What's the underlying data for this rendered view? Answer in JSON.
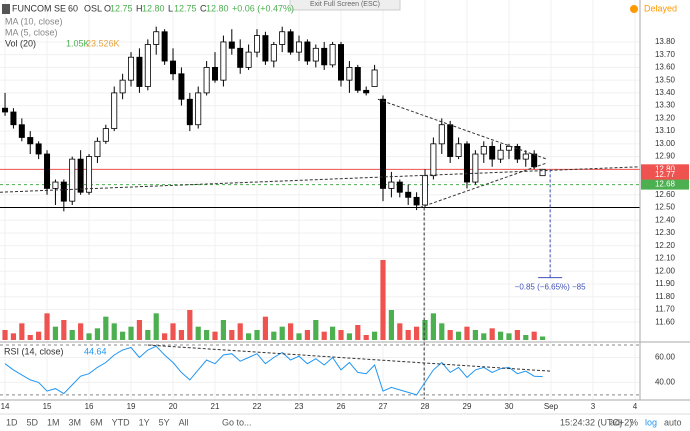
{
  "header": {
    "tooltip": "Exit Full Screen (ESC)",
    "status": "Delayed"
  },
  "legend": {
    "symbol": "FUNCOM SE",
    "interval": "60",
    "exchange": "OSL",
    "ohlc_labels": [
      "O",
      "H",
      "L",
      "C"
    ],
    "ohlc_values": [
      "12.75",
      "12.80",
      "12.75",
      "12.80"
    ],
    "change": "+0.06 (+0.47%)",
    "ma10": "MA (10, close)",
    "ma5": "MA (5, close)",
    "volume": "Vol (20)",
    "volume_value": "1.05K",
    "volume_ma": "23.526K"
  },
  "toolbar": {
    "periods": [
      "1D",
      "5D",
      "1M",
      "3M",
      "6M",
      "YTD",
      "1Y",
      "5Y",
      "All"
    ],
    "goto": "Go to...",
    "time": "15:24:32 (UTC+2)",
    "options": [
      "%",
      "log",
      "auto"
    ],
    "adj": "adj"
  },
  "chart_data": {
    "type": "candlestick",
    "x": [
      0,
      1,
      2,
      3,
      4,
      5,
      6,
      7,
      8,
      9,
      10,
      11,
      12,
      13,
      14,
      15,
      16,
      17,
      18,
      19,
      20,
      21,
      22,
      23,
      24,
      25,
      26,
      27,
      28,
      29,
      30,
      31,
      32,
      33,
      34,
      35,
      36,
      37,
      38,
      39,
      40,
      41,
      42,
      43,
      44,
      45,
      46,
      47,
      48,
      49,
      50,
      51,
      52,
      53,
      54,
      55,
      56,
      57,
      58,
      59,
      60,
      61,
      62,
      63,
      64
    ],
    "open": [
      13.28,
      13.25,
      13.15,
      13.05,
      13.0,
      12.92,
      12.65,
      12.7,
      12.55,
      12.88,
      12.62,
      12.9,
      13.02,
      13.12,
      13.4,
      13.5,
      13.68,
      13.45,
      13.78,
      13.88,
      13.65,
      13.55,
      13.35,
      13.15,
      13.4,
      13.6,
      13.5,
      13.8,
      13.75,
      13.6,
      13.72,
      13.85,
      13.65,
      13.78,
      13.88,
      13.72,
      13.8,
      13.65,
      13.75,
      13.62,
      13.78,
      13.5,
      13.6,
      13.42,
      13.45,
      13.35,
      12.65,
      12.7,
      12.62,
      12.58,
      12.52,
      12.75,
      13.0,
      13.15,
      12.9,
      13.0,
      12.7,
      12.92,
      12.98,
      12.88,
      12.95,
      12.98,
      12.88,
      12.92,
      12.75
    ],
    "high": [
      13.4,
      13.28,
      13.2,
      13.1,
      13.02,
      12.95,
      12.72,
      12.72,
      12.9,
      12.95,
      12.92,
      13.05,
      13.15,
      13.45,
      13.55,
      13.72,
      13.75,
      13.82,
      13.92,
      13.9,
      13.75,
      13.6,
      13.4,
      13.45,
      13.65,
      13.72,
      13.85,
      13.9,
      13.82,
      13.78,
      13.9,
      13.88,
      13.8,
      13.92,
      13.9,
      13.85,
      13.82,
      13.78,
      13.8,
      13.8,
      13.8,
      13.65,
      13.62,
      13.45,
      13.62,
      13.38,
      12.78,
      12.72,
      12.68,
      12.62,
      12.8,
      13.05,
      13.2,
      13.18,
      13.05,
      13.02,
      12.95,
      13.02,
      13.02,
      13.0,
      13.0,
      13.0,
      12.95,
      12.95,
      12.8
    ],
    "low": [
      13.22,
      13.12,
      13.02,
      12.92,
      12.88,
      12.6,
      12.52,
      12.47,
      12.52,
      12.6,
      12.6,
      12.85,
      13.0,
      13.1,
      13.35,
      13.45,
      13.4,
      13.42,
      13.7,
      13.62,
      13.5,
      13.3,
      13.1,
      13.12,
      13.38,
      13.48,
      13.45,
      13.7,
      13.55,
      13.58,
      13.68,
      13.62,
      13.6,
      13.72,
      13.7,
      13.65,
      13.62,
      13.6,
      13.58,
      13.6,
      13.45,
      13.4,
      13.4,
      13.38,
      13.45,
      12.55,
      12.58,
      12.58,
      12.52,
      12.48,
      12.5,
      12.72,
      12.92,
      12.85,
      12.88,
      12.65,
      12.68,
      12.85,
      12.82,
      12.85,
      12.88,
      12.85,
      12.82,
      12.8,
      12.75
    ],
    "close": [
      13.25,
      13.15,
      13.05,
      13.0,
      12.92,
      12.65,
      12.7,
      12.55,
      12.88,
      12.62,
      12.9,
      13.02,
      13.12,
      13.4,
      13.5,
      13.68,
      13.45,
      13.78,
      13.88,
      13.65,
      13.55,
      13.35,
      13.15,
      13.4,
      13.6,
      13.5,
      13.8,
      13.75,
      13.6,
      13.72,
      13.85,
      13.65,
      13.78,
      13.88,
      13.72,
      13.8,
      13.65,
      13.75,
      13.62,
      13.78,
      13.5,
      13.6,
      13.42,
      13.4,
      13.58,
      12.65,
      12.7,
      12.62,
      12.58,
      12.52,
      12.75,
      13.0,
      13.15,
      12.9,
      13.0,
      12.7,
      12.92,
      12.98,
      12.88,
      12.95,
      12.98,
      12.88,
      12.92,
      12.82,
      12.8
    ],
    "volume": [
      3000,
      2000,
      5000,
      1500,
      2500,
      8000,
      4000,
      6000,
      3000,
      5000,
      2000,
      3500,
      7000,
      5000,
      2500,
      4000,
      6000,
      3000,
      8000,
      2000,
      5000,
      3000,
      9000,
      4000,
      3000,
      2500,
      6000,
      3000,
      5000,
      2000,
      3000,
      7000,
      2500,
      4000,
      5000,
      2000,
      3000,
      6000,
      2500,
      4000,
      3000,
      2000,
      4500,
      1500,
      2500,
      24000,
      9000,
      5000,
      3000,
      4000,
      6000,
      8000,
      5000,
      3000,
      2500,
      4000,
      3000,
      2000,
      3500,
      2500,
      2000,
      3000,
      1500,
      2500,
      1050
    ],
    "xlim": [
      -0.6,
      75.6
    ],
    "xticks": [
      {
        "value": 0,
        "label": "14"
      },
      {
        "value": 5,
        "label": "15"
      },
      {
        "value": 10,
        "label": "16"
      },
      {
        "value": 15,
        "label": "19"
      },
      {
        "value": 20,
        "label": "20"
      },
      {
        "value": 25,
        "label": "21"
      },
      {
        "value": 30,
        "label": "22"
      },
      {
        "value": 35,
        "label": "23"
      },
      {
        "value": 40,
        "label": "26"
      },
      {
        "value": 45,
        "label": "27"
      },
      {
        "value": 50,
        "label": "28"
      },
      {
        "value": 55,
        "label": "29"
      },
      {
        "value": 60,
        "label": "30"
      },
      {
        "value": 65,
        "label": "Sep"
      },
      {
        "value": 70,
        "label": "3"
      },
      {
        "value": 75,
        "label": "4"
      }
    ],
    "ylim": [
      11.46,
      14.09
    ],
    "yticks": [
      {
        "value": 11.6,
        "label": "11.60"
      },
      {
        "value": 11.7,
        "label": "11.70"
      },
      {
        "value": 11.8,
        "label": "11.80"
      },
      {
        "value": 11.9,
        "label": "11.90"
      },
      {
        "value": 12,
        "label": "12.00"
      },
      {
        "value": 12.1,
        "label": "12.10"
      },
      {
        "value": 12.2,
        "label": "12.20"
      },
      {
        "value": 12.3,
        "label": "12.30"
      },
      {
        "value": 12.4,
        "label": "12.40"
      },
      {
        "value": 12.5,
        "label": "12.50"
      },
      {
        "value": 12.6,
        "label": "12.60"
      },
      {
        "value": 12.7,
        "label": "12.70"
      },
      {
        "value": 12.8,
        "label": "12.80"
      },
      {
        "value": 12.9,
        "label": "12.90"
      },
      {
        "value": 13,
        "label": "13.00"
      },
      {
        "value": 13.1,
        "label": "13.10"
      },
      {
        "value": 13.2,
        "label": "13.20"
      },
      {
        "value": 13.3,
        "label": "13.30"
      },
      {
        "value": 13.4,
        "label": "13.40"
      },
      {
        "value": 13.5,
        "label": "13.50"
      },
      {
        "value": 13.6,
        "label": "13.60"
      },
      {
        "value": 13.7,
        "label": "13.70"
      },
      {
        "value": 13.8,
        "label": "13.80"
      }
    ],
    "vlim": [
      0,
      30000
    ],
    "grid": true,
    "up_color": "#ffffff",
    "down_color": "#000000",
    "volume_up_color": "#4caf50",
    "volume_down_color": "#ef5350",
    "lines": [
      {
        "price": 12.8,
        "color": "#ef5350",
        "dash": false
      },
      {
        "price": 12.68,
        "color": "#4caf50",
        "dash": true
      },
      {
        "price": 12.5,
        "color": "#000000",
        "dash": false
      }
    ],
    "price_markers": [
      {
        "value": 12.8,
        "label": "12.80",
        "color": "#ef5350"
      },
      {
        "value": 12.77,
        "label": "12.77",
        "color": "#ef5350"
      },
      {
        "value": 12.68,
        "label": "12.68",
        "color": "#4caf50"
      }
    ],
    "trendlines": [
      {
        "x": [
          44.4,
          64.5
        ],
        "y": [
          13.35,
          12.88
        ]
      },
      {
        "x": [
          49.4,
          64.5
        ],
        "y": [
          12.5,
          12.85
        ]
      },
      {
        "x": [
          -0.6,
          75.6
        ],
        "y": [
          12.62,
          12.82
        ]
      }
    ],
    "vertical_marker": {
      "x": 49.9,
      "price": 12.5
    },
    "measure": {
      "x": 64.9,
      "from": 12.8,
      "to": 11.95,
      "label": "−0.85 (−6.65%) −85"
    },
    "rsi": {
      "name": "RSI (14, close)",
      "color": "#2196f3",
      "values": [
        55,
        50,
        46,
        42,
        40,
        33,
        35,
        31,
        38,
        45,
        47,
        52,
        56,
        62,
        66,
        68,
        60,
        66,
        69,
        62,
        56,
        48,
        42,
        50,
        58,
        55,
        62,
        63,
        57,
        60,
        63,
        55,
        60,
        64,
        58,
        61,
        55,
        59,
        54,
        60,
        50,
        56,
        48,
        47,
        54,
        33,
        36,
        34,
        32,
        30,
        40,
        50,
        56,
        48,
        52,
        44,
        50,
        52,
        48,
        51,
        52,
        47,
        49,
        45,
        44.64
      ],
      "ylim": [
        26.7,
        70.8
      ],
      "yticks": [
        {
          "value": 60,
          "label": "60.00"
        },
        {
          "value": 40,
          "label": "40.00"
        }
      ],
      "levels": [
        70,
        30
      ],
      "trendline": {
        "x": [
          17,
          65
        ],
        "y": [
          70,
          49
        ]
      }
    }
  }
}
